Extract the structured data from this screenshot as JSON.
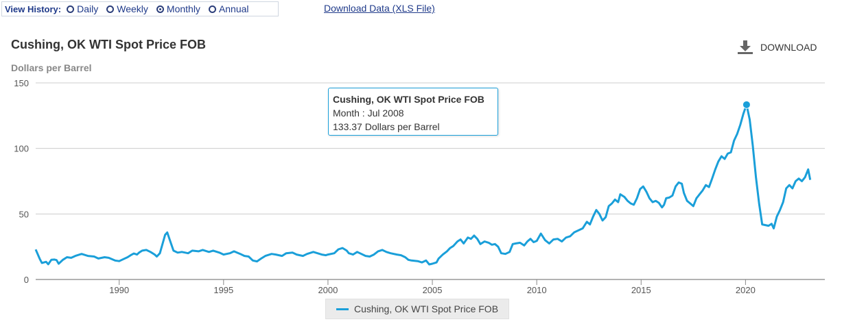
{
  "history": {
    "label": "View History:",
    "options": [
      "Daily",
      "Weekly",
      "Monthly",
      "Annual"
    ],
    "selected": "Monthly"
  },
  "download_data_link": "Download Data (XLS File)",
  "download_button": "DOWNLOAD",
  "chart_data": {
    "type": "line",
    "title": "Cushing, OK WTI Spot Price FOB",
    "ylabel": "Dollars per Barrel",
    "xlabel": "",
    "ylim": [
      0,
      150
    ],
    "xlim": [
      1986.0,
      2023.8
    ],
    "yticks": [
      0,
      50,
      100,
      150
    ],
    "xticks": [
      1990,
      1995,
      2000,
      2005,
      2010,
      2015,
      2020
    ],
    "grid": true,
    "legend_position": "bottom-center",
    "series": [
      {
        "name": "Cushing, OK WTI Spot Price FOB",
        "color": "#1a9fd9",
        "points": [
          [
            1986.0,
            22.9
          ],
          [
            1986.2,
            15.5
          ],
          [
            1986.3,
            12.6
          ],
          [
            1986.5,
            13.5
          ],
          [
            1986.6,
            11.6
          ],
          [
            1986.75,
            15.0
          ],
          [
            1986.9,
            15.2
          ],
          [
            1987.0,
            14.8
          ],
          [
            1987.1,
            12.0
          ],
          [
            1987.3,
            15.0
          ],
          [
            1987.5,
            17.0
          ],
          [
            1987.7,
            16.5
          ],
          [
            1987.9,
            18.0
          ],
          [
            1988.2,
            19.5
          ],
          [
            1988.5,
            18.0
          ],
          [
            1988.8,
            17.5
          ],
          [
            1989.0,
            16.0
          ],
          [
            1989.3,
            17.0
          ],
          [
            1989.5,
            16.5
          ],
          [
            1989.8,
            14.5
          ],
          [
            1990.0,
            14.0
          ],
          [
            1990.2,
            15.5
          ],
          [
            1990.4,
            17.0
          ],
          [
            1990.55,
            18.5
          ],
          [
            1990.7,
            19.8
          ],
          [
            1990.85,
            19.0
          ],
          [
            1990.95,
            20.5
          ],
          [
            1991.1,
            22.0
          ],
          [
            1991.3,
            22.5
          ],
          [
            1991.5,
            21.0
          ],
          [
            1991.7,
            19.0
          ],
          [
            1991.8,
            17.5
          ],
          [
            1991.95,
            20.0
          ],
          [
            1992.2,
            34.0
          ],
          [
            1992.3,
            35.9
          ],
          [
            1992.45,
            29.0
          ],
          [
            1992.6,
            22.0
          ],
          [
            1992.8,
            20.5
          ],
          [
            1993.0,
            21.0
          ],
          [
            1993.3,
            20.0
          ],
          [
            1993.5,
            22.0
          ],
          [
            1993.8,
            21.5
          ],
          [
            1994.0,
            22.5
          ],
          [
            1994.3,
            21.0
          ],
          [
            1994.5,
            22.0
          ],
          [
            1994.8,
            20.5
          ],
          [
            1995.0,
            19.0
          ],
          [
            1995.3,
            20.0
          ],
          [
            1995.5,
            21.5
          ],
          [
            1995.8,
            19.5
          ],
          [
            1996.0,
            18.0
          ],
          [
            1996.2,
            17.5
          ],
          [
            1996.4,
            14.5
          ],
          [
            1996.6,
            13.8
          ],
          [
            1996.8,
            16.0
          ],
          [
            1997.0,
            18.0
          ],
          [
            1997.3,
            19.5
          ],
          [
            1997.5,
            19.0
          ],
          [
            1997.8,
            18.0
          ],
          [
            1998.0,
            20.0
          ],
          [
            1998.3,
            20.5
          ],
          [
            1998.5,
            19.0
          ],
          [
            1998.8,
            18.0
          ],
          [
            1999.0,
            19.5
          ],
          [
            1999.3,
            21.0
          ],
          [
            1999.5,
            20.0
          ],
          [
            1999.7,
            19.0
          ],
          [
            1999.9,
            18.5
          ],
          [
            2000.0,
            19.0
          ],
          [
            2000.3,
            20.0
          ],
          [
            2000.5,
            23.0
          ],
          [
            2000.7,
            24.0
          ],
          [
            2000.9,
            22.0
          ],
          [
            2001.0,
            20.0
          ],
          [
            2001.2,
            19.0
          ],
          [
            2001.4,
            21.0
          ],
          [
            2001.6,
            19.5
          ],
          [
            2001.8,
            18.0
          ],
          [
            2002.0,
            17.5
          ],
          [
            2002.2,
            19.0
          ],
          [
            2002.4,
            21.5
          ],
          [
            2002.6,
            22.5
          ],
          [
            2002.8,
            21.0
          ],
          [
            2003.0,
            20.0
          ],
          [
            2003.3,
            19.0
          ],
          [
            2003.5,
            18.5
          ],
          [
            2003.7,
            17.0
          ],
          [
            2003.85,
            15.0
          ],
          [
            2004.0,
            14.5
          ],
          [
            2004.3,
            14.0
          ],
          [
            2004.5,
            13.0
          ],
          [
            2004.7,
            14.5
          ],
          [
            2004.85,
            11.5
          ],
          [
            2005.0,
            12.0
          ],
          [
            2005.2,
            13.0
          ],
          [
            2005.3,
            16.0
          ],
          [
            2005.5,
            19.0
          ],
          [
            2005.7,
            21.5
          ],
          [
            2005.85,
            24.0
          ],
          [
            2006.0,
            25.5
          ],
          [
            2006.2,
            29.0
          ],
          [
            2006.35,
            30.5
          ],
          [
            2006.5,
            27.5
          ],
          [
            2006.7,
            32.0
          ],
          [
            2006.85,
            31.0
          ],
          [
            2007.0,
            33.5
          ],
          [
            2007.15,
            31.0
          ],
          [
            2007.3,
            27.0
          ],
          [
            2007.5,
            29.0
          ],
          [
            2007.7,
            28.0
          ],
          [
            2007.85,
            26.5
          ],
          [
            2008.0,
            27.0
          ],
          [
            2008.15,
            25.0
          ],
          [
            2008.3,
            20.0
          ],
          [
            2008.5,
            19.5
          ],
          [
            2008.7,
            21.0
          ],
          [
            2008.85,
            27.0
          ],
          [
            2009.0,
            27.5
          ],
          [
            2009.2,
            28.0
          ],
          [
            2009.4,
            26.0
          ],
          [
            2009.55,
            29.0
          ],
          [
            2009.7,
            31.0
          ],
          [
            2009.85,
            28.5
          ],
          [
            2010.0,
            29.5
          ],
          [
            2010.2,
            35.0
          ],
          [
            2010.4,
            30.0
          ],
          [
            2010.6,
            27.5
          ],
          [
            2010.8,
            30.5
          ],
          [
            2011.0,
            31.0
          ],
          [
            2011.2,
            29.0
          ],
          [
            2011.4,
            32.0
          ],
          [
            2011.6,
            33.0
          ],
          [
            2011.8,
            36.0
          ],
          [
            2012.0,
            37.5
          ],
          [
            2012.2,
            39.0
          ],
          [
            2012.4,
            44.0
          ],
          [
            2012.55,
            42.0
          ],
          [
            2012.7,
            48.0
          ],
          [
            2012.85,
            53.0
          ],
          [
            2013.0,
            50.0
          ],
          [
            2013.15,
            45.0
          ],
          [
            2013.3,
            47.5
          ],
          [
            2013.45,
            56.0
          ],
          [
            2013.6,
            58.0
          ],
          [
            2013.75,
            61.0
          ],
          [
            2013.9,
            59.0
          ],
          [
            2014.0,
            65.0
          ],
          [
            2014.2,
            63.0
          ],
          [
            2014.35,
            60.0
          ],
          [
            2014.5,
            58.0
          ],
          [
            2014.65,
            57.0
          ],
          [
            2014.8,
            62.0
          ],
          [
            2014.95,
            69.0
          ],
          [
            2015.1,
            71.0
          ],
          [
            2015.25,
            67.0
          ],
          [
            2015.4,
            62.0
          ],
          [
            2015.55,
            59.0
          ],
          [
            2015.7,
            60.0
          ],
          [
            2015.85,
            58.5
          ],
          [
            2016.0,
            55.0
          ],
          [
            2016.1,
            57.0
          ],
          [
            2016.2,
            62.0
          ],
          [
            2016.35,
            62.5
          ],
          [
            2016.5,
            64.0
          ],
          [
            2016.65,
            71.0
          ],
          [
            2016.8,
            74.0
          ],
          [
            2016.95,
            73.0
          ],
          [
            2017.05,
            66.0
          ],
          [
            2017.2,
            60.0
          ],
          [
            2017.35,
            58.0
          ],
          [
            2017.5,
            56.0
          ],
          [
            2017.65,
            62.0
          ],
          [
            2017.8,
            65.0
          ],
          [
            2017.95,
            68.0
          ],
          [
            2018.1,
            72.0
          ],
          [
            2018.25,
            70.5
          ],
          [
            2018.4,
            77.0
          ],
          [
            2018.55,
            84.0
          ],
          [
            2018.7,
            90.0
          ],
          [
            2018.85,
            94.0
          ],
          [
            2019.0,
            92.0
          ],
          [
            2019.15,
            96.0
          ],
          [
            2019.3,
            97.0
          ],
          [
            2019.45,
            106.0
          ],
          [
            2019.6,
            111.0
          ],
          [
            2019.75,
            118.0
          ],
          [
            2019.9,
            126.5
          ],
          [
            2020.05,
            133.37
          ],
          [
            2020.2,
            122.0
          ],
          [
            2020.35,
            102.0
          ],
          [
            2020.5,
            78.0
          ],
          [
            2020.65,
            58.0
          ],
          [
            2020.8,
            42.0
          ],
          [
            2020.95,
            41.5
          ],
          [
            2021.1,
            41.0
          ],
          [
            2021.25,
            42.5
          ],
          [
            2021.35,
            39.0
          ],
          [
            2021.5,
            48.0
          ],
          [
            2021.65,
            53.0
          ],
          [
            2021.8,
            59.0
          ],
          [
            2021.95,
            69.5
          ],
          [
            2022.1,
            72.0
          ],
          [
            2022.25,
            69.5
          ],
          [
            2022.4,
            75.0
          ],
          [
            2022.55,
            77.0
          ],
          [
            2022.7,
            75.0
          ],
          [
            2022.85,
            78.0
          ],
          [
            2023.0,
            84.0
          ],
          [
            2023.1,
            76.0
          ]
        ]
      }
    ]
  },
  "tooltip": {
    "title": "Cushing, OK WTI Spot Price FOB",
    "month_line": "Month : Jul 2008",
    "value_line": "133.37 Dollars per Barrel"
  }
}
